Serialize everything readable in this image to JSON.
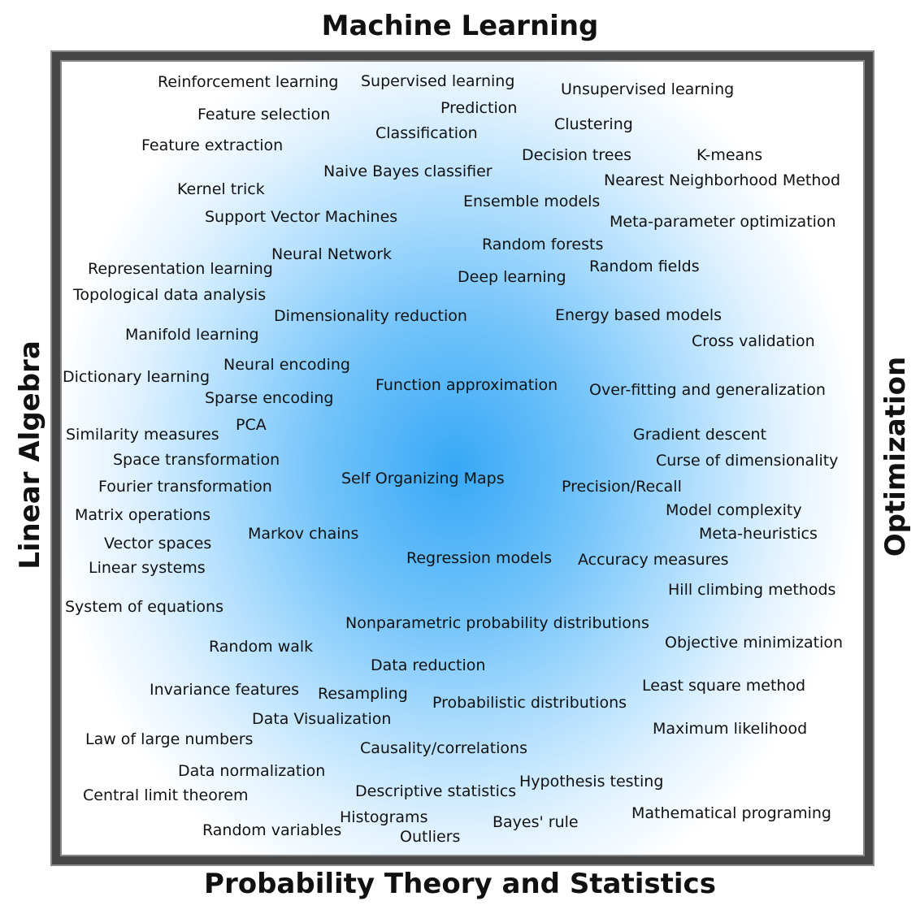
{
  "titles": {
    "top": "Machine Learning",
    "bottom": "Probability Theory and Statistics",
    "left": "Linear Algebra",
    "right": "Optimization"
  },
  "terms": [
    "Reinforcement learning",
    "Supervised learning",
    "Unsupervised learning",
    "Feature selection",
    "Prediction",
    "Clustering",
    "Classification",
    "Feature extraction",
    "Decision trees",
    "K-means",
    "Naive Bayes classifier",
    "Nearest Neighborhood Method",
    "Kernel trick",
    "Ensemble models",
    "Support Vector Machines",
    "Meta-parameter optimization",
    "Random forests",
    "Neural Network",
    "Random fields",
    "Representation learning",
    "Deep learning",
    "Topological data analysis",
    "Dimensionality reduction",
    "Energy based models",
    "Manifold learning",
    "Cross validation",
    "Neural encoding",
    "Dictionary learning",
    "Function approximation",
    "Over-fitting and generalization",
    "Sparse encoding",
    "PCA",
    "Similarity measures",
    "Gradient descent",
    "Space transformation",
    "Curse of dimensionality",
    "Self Organizing Maps",
    "Fourier transformation",
    "Precision/Recall",
    "Model complexity",
    "Matrix operations",
    "Markov chains",
    "Meta-heuristics",
    "Vector spaces",
    "Regression models",
    "Accuracy measures",
    "Linear systems",
    "Hill climbing methods",
    "System of equations",
    "Nonparametric probability distributions",
    "Objective minimization",
    "Random walk",
    "Data reduction",
    "Least square method",
    "Invariance features",
    "Resampling",
    "Probabilistic distributions",
    "Data Visualization",
    "Maximum likelihood",
    "Law of large numbers",
    "Causality/correlations",
    "Data normalization",
    "Hypothesis testing",
    "Central limit theorem",
    "Descriptive statistics",
    "Mathematical programing",
    "Histograms",
    "Bayes' rule",
    "Random variables",
    "Outliers"
  ]
}
